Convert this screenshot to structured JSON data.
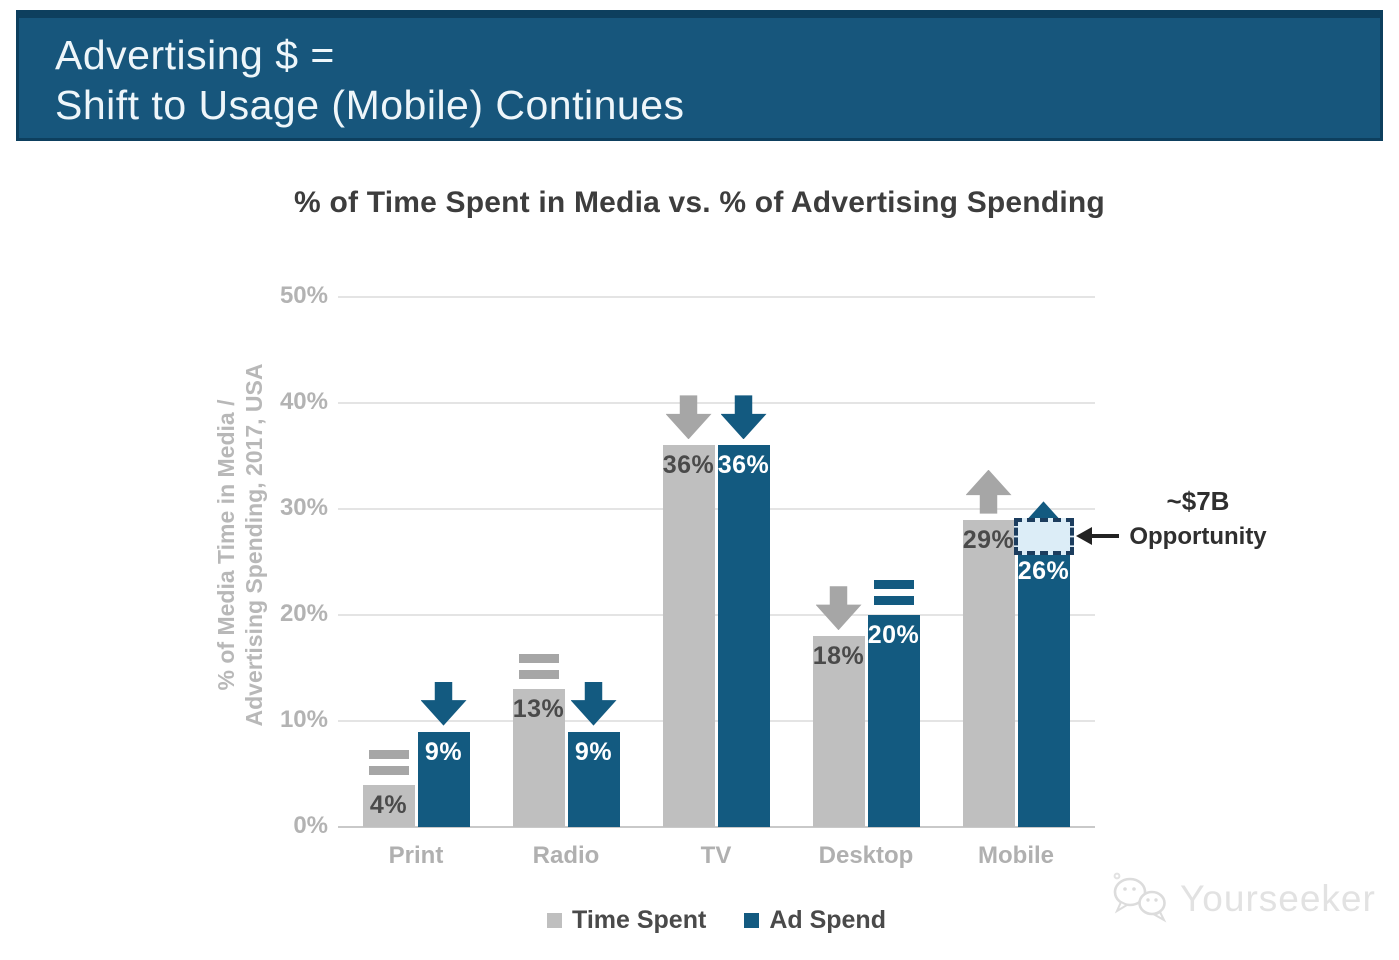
{
  "slide": {
    "header": {
      "line1": "Advertising $ =",
      "line2": "Shift to Usage (Mobile) Continues",
      "bg_color": "#17567c",
      "border_color": "#0d3f5e"
    },
    "watermark": {
      "label": "Yourseeker",
      "icon": "chat-bubbles-icon",
      "color": "#e0e0e0"
    }
  },
  "chart_data": {
    "type": "bar",
    "title": "% of Time Spent in Media vs. % of Advertising Spending",
    "ylabel_line1": "% of Media Time in Media /",
    "ylabel_line2": "Advertising Spending, 2017, USA",
    "categories": [
      "Print",
      "Radio",
      "TV",
      "Desktop",
      "Mobile"
    ],
    "series": [
      {
        "name": "Time Spent",
        "color": "#bfbfbf",
        "trend_color": "#a6a6a6",
        "label_color": "#4a4a4a",
        "values": [
          4,
          13,
          36,
          18,
          29
        ],
        "trends": [
          "flat",
          "flat",
          "down",
          "down",
          "up"
        ]
      },
      {
        "name": "Ad Spend",
        "color": "#135a80",
        "trend_color": "#135a80",
        "label_color": "#ffffff",
        "values": [
          9,
          9,
          36,
          20,
          26
        ],
        "trends": [
          "down",
          "down",
          "down",
          "flat",
          "up"
        ]
      }
    ],
    "value_suffix": "%",
    "ylim": [
      0,
      50
    ],
    "ytick_step": 10,
    "ytick_labels": [
      "0%",
      "10%",
      "20%",
      "30%",
      "40%",
      "50%"
    ],
    "grid": true,
    "legend_position": "bottom",
    "annotation": {
      "line1": "~$7B",
      "line2": "Opportunity",
      "category": "Mobile",
      "series": "Ad Spend",
      "gap_from": 26,
      "gap_to": 29,
      "box_fill": "#dcedf7",
      "box_border": "#1c3d5e"
    }
  }
}
